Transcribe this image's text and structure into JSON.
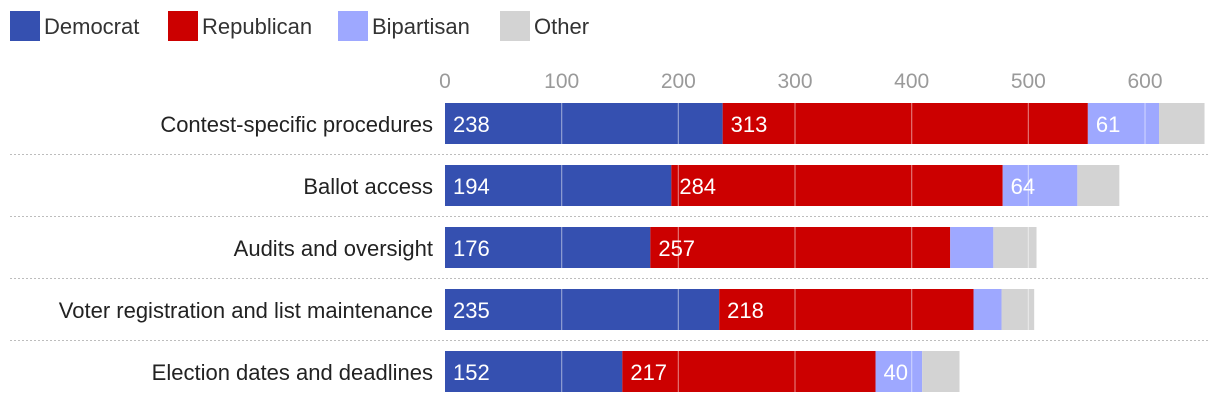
{
  "chart_data": {
    "type": "bar",
    "orientation": "horizontal",
    "stacked": true,
    "categories": [
      "Contest-specific procedures",
      "Ballot access",
      "Audits and oversight",
      "Voter registration and list maintenance",
      "Election dates and deadlines"
    ],
    "series": [
      {
        "name": "Democrat",
        "color": "#3550b0",
        "values": [
          238,
          194,
          176,
          235,
          152
        ],
        "labels": [
          "238",
          "194",
          "176",
          "235",
          "152"
        ]
      },
      {
        "name": "Republican",
        "color": "#cc0000",
        "values": [
          313,
          284,
          257,
          218,
          217
        ],
        "labels": [
          "313",
          "284",
          "257",
          "218",
          "217"
        ]
      },
      {
        "name": "Bipartisan",
        "color": "#9ea8ff",
        "values": [
          61,
          64,
          37,
          24,
          40
        ],
        "labels": [
          "61",
          "64",
          "",
          "",
          "40"
        ]
      },
      {
        "name": "Other",
        "color": "#d3d3d3",
        "values": [
          39,
          36,
          37,
          28,
          32
        ],
        "labels": [
          "",
          "",
          "",
          "",
          ""
        ]
      }
    ],
    "x_ticks": [
      "0",
      "100",
      "200",
      "300",
      "400",
      "500",
      "600"
    ],
    "xlim": [
      0,
      650
    ],
    "grid": true,
    "legend_position": "top-left",
    "title": "",
    "xlabel": "",
    "ylabel": ""
  }
}
